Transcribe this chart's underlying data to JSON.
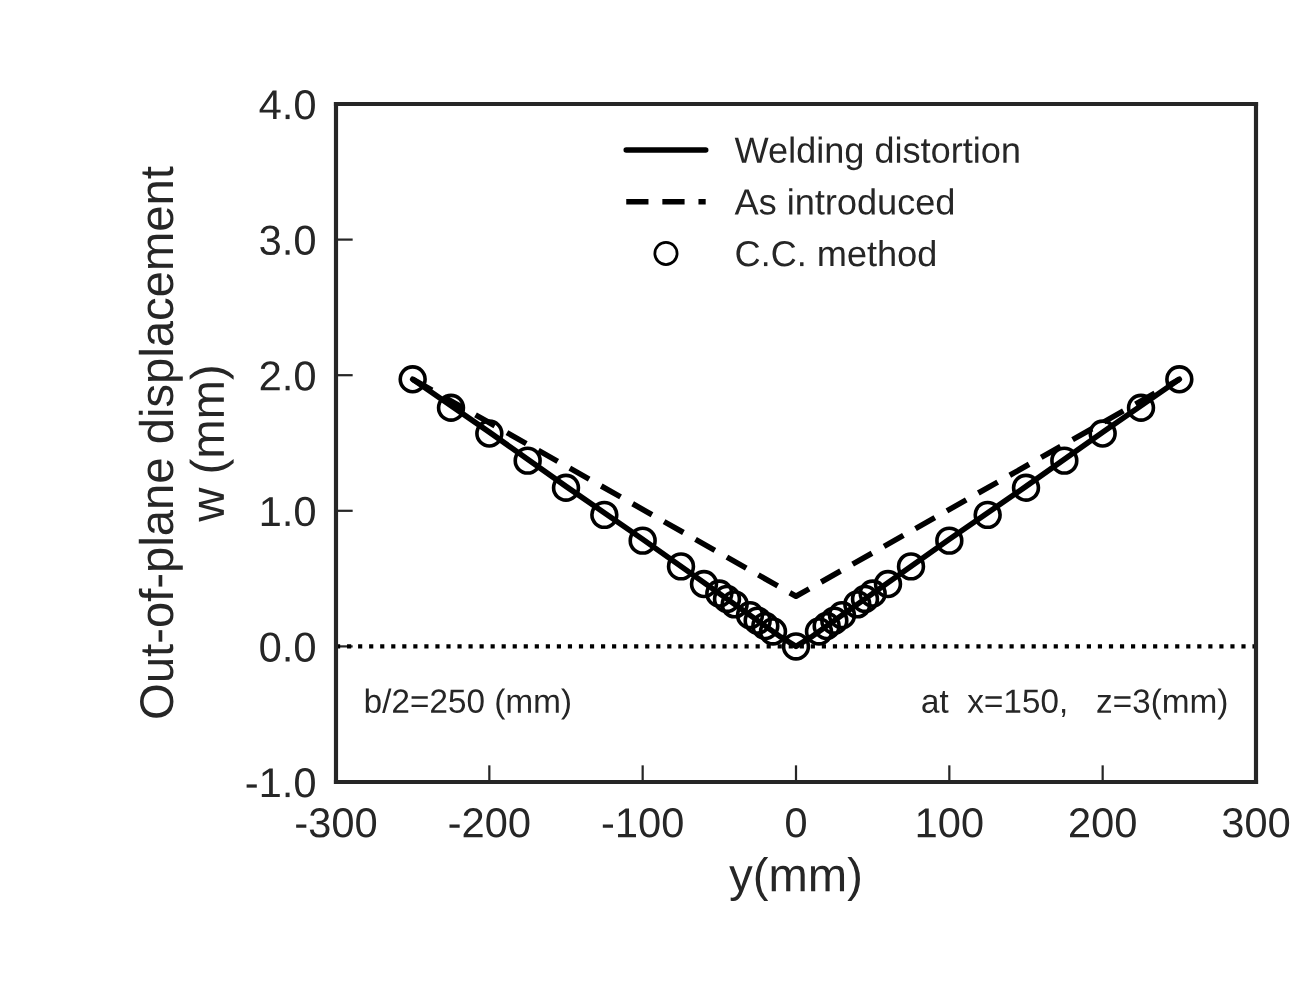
{
  "chart_data": {
    "type": "line",
    "xlabel": "y(mm)",
    "ylabel": "Out-of-plane displacement\nw (mm)",
    "xlim": [
      -300,
      300
    ],
    "xticks": [
      -300,
      -200,
      -100,
      0,
      100,
      200,
      300
    ],
    "ylim": [
      -1.0,
      4.0
    ],
    "yticks": [
      {
        "value": -1,
        "label": "-1.0"
      },
      {
        "value": 0,
        "label": "0.0"
      },
      {
        "value": 1,
        "label": "1.0"
      },
      {
        "value": 2,
        "label": "2.0"
      },
      {
        "value": 3,
        "label": "3.0"
      },
      {
        "value": 4,
        "label": "4.0"
      }
    ],
    "legend": "top",
    "grid": false,
    "series": [
      {
        "name": "Welding distortion",
        "color": "#000000",
        "line_style": "solid",
        "marker": "none",
        "x": [
          -250,
          -200,
          -150,
          -100,
          -50,
          -20,
          -10,
          0,
          10,
          20,
          50,
          100,
          150,
          200,
          250
        ],
        "values": [
          1.97,
          1.58,
          1.18,
          0.79,
          0.39,
          0.15,
          0.07,
          0.0,
          0.07,
          0.15,
          0.39,
          0.79,
          1.18,
          1.58,
          1.97
        ]
      },
      {
        "name": "As introduced",
        "color": "#000000",
        "line_style": "dashed",
        "marker": "none",
        "x": [
          -250,
          0,
          250
        ],
        "values": [
          1.97,
          0.37,
          1.97
        ]
      },
      {
        "name": "C.C. method",
        "type": "scatter",
        "color": "#000000",
        "marker": "circle",
        "x": [
          -250,
          -225,
          -200,
          -175,
          -150,
          -125,
          -100,
          -75,
          -60,
          -50,
          -45,
          -40,
          -30,
          -25,
          -20,
          -15,
          -10,
          -5,
          0,
          5,
          10,
          15,
          20,
          25,
          30,
          40,
          45,
          50,
          60,
          75,
          100,
          125,
          150,
          175,
          200,
          225,
          250
        ],
        "values": [
          1.97,
          1.76,
          1.57,
          1.37,
          1.17,
          0.97,
          0.78,
          0.59,
          0.46,
          0.39,
          0.35,
          0.31,
          0.23,
          0.19,
          0.15,
          0.11,
          null,
          null,
          0.0,
          null,
          null,
          0.11,
          0.15,
          0.19,
          0.23,
          0.31,
          0.35,
          0.39,
          0.46,
          0.59,
          0.78,
          0.97,
          1.17,
          1.37,
          1.57,
          1.76,
          1.97
        ]
      }
    ],
    "ref_lines": [
      {
        "axis": "y",
        "value": 0,
        "line_style": "dotted",
        "color": "#000000"
      }
    ],
    "annotations": [
      {
        "text": "b/2=250 (mm)"
      },
      {
        "text": "at  x=150,   z=3(mm)"
      }
    ]
  }
}
